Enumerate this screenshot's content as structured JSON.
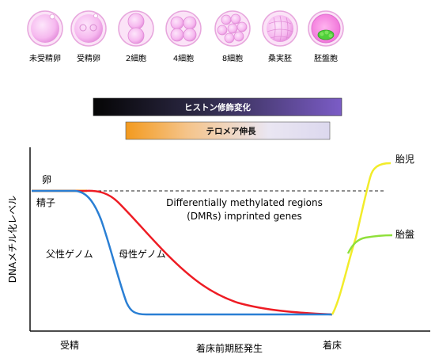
{
  "stages": [
    {
      "label": "未受精卵"
    },
    {
      "label": "受精卵"
    },
    {
      "label": "2細胞"
    },
    {
      "label": "4細胞"
    },
    {
      "label": "8細胞"
    },
    {
      "label": "桑実胚"
    },
    {
      "label": "胚盤胞"
    }
  ],
  "bars": {
    "histone": "ヒストン修飾変化",
    "telomere": "テロメア伸長"
  },
  "axes": {
    "ylabel": "DNAメチル化レベル",
    "xlabel": "着床前期胚発生",
    "fertilization": "受精",
    "implantation": "着床"
  },
  "curve_labels": {
    "egg": "卵",
    "sperm": "精子",
    "paternal": "父性ゲノム",
    "maternal": "母性ゲノム",
    "fetus": "胎児",
    "placenta": "胎盤"
  },
  "dmr_note": {
    "line1": "Differentially methylated regions",
    "line2": "(DMRs) imprinted genes"
  },
  "colors": {
    "paternal": "#2a7fd4",
    "maternal": "#ee1c24",
    "fetus": "#f2ec2a",
    "placenta": "#8fe03a",
    "cell": "#f7b8f0"
  }
}
